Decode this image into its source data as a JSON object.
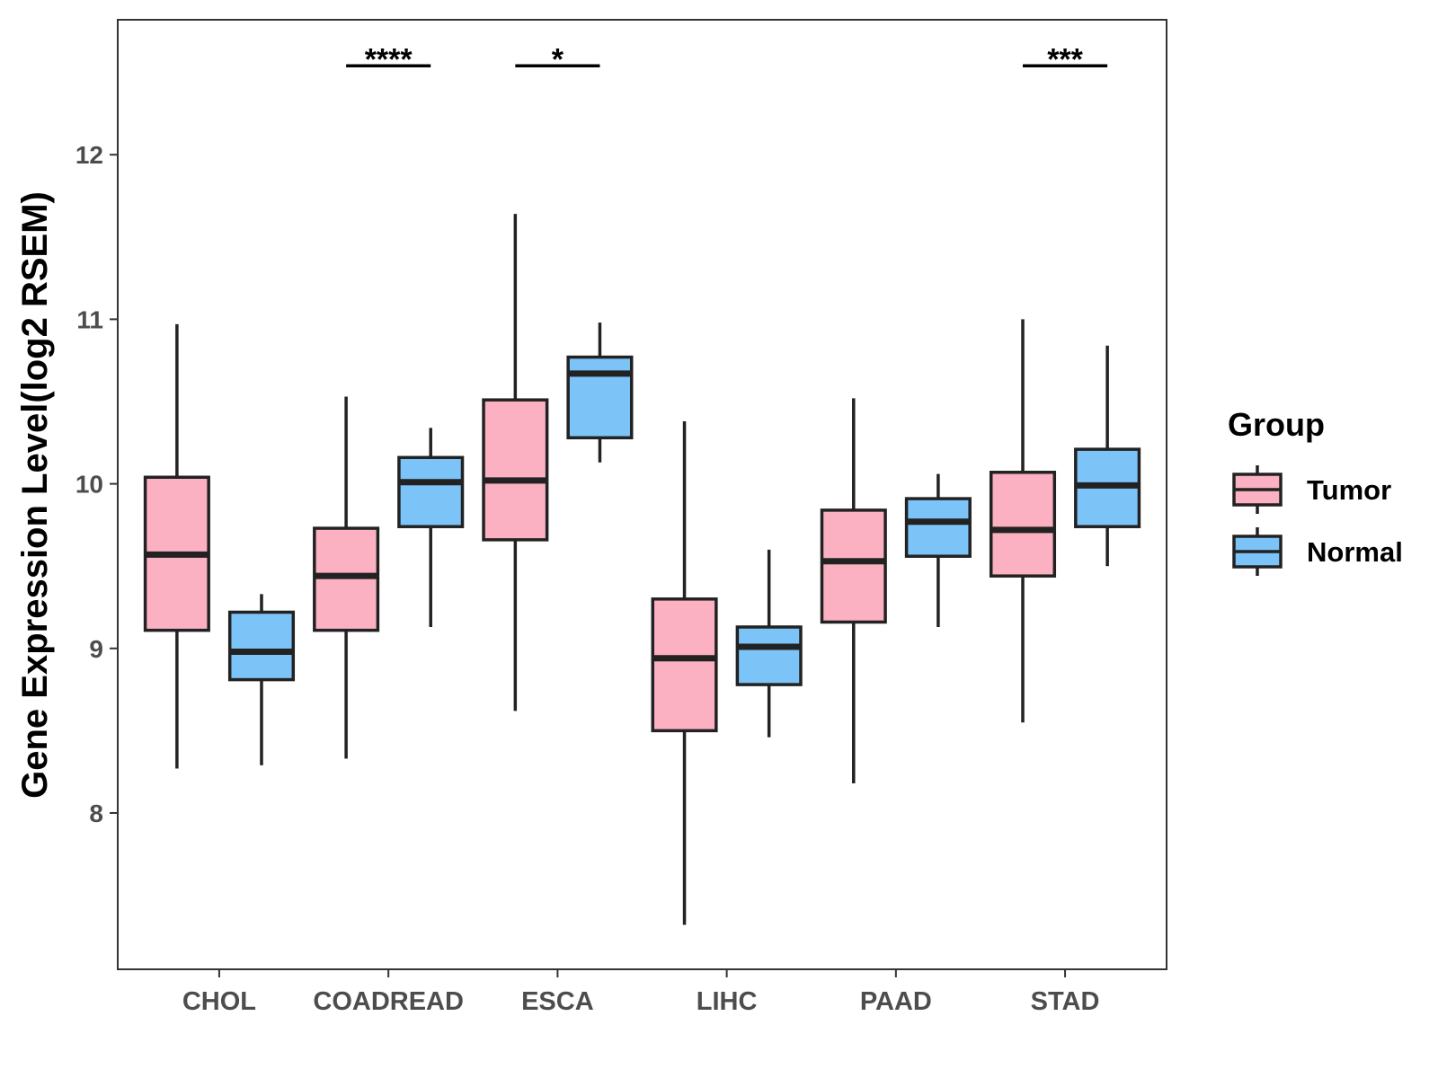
{
  "chart_data": {
    "type": "box",
    "title": "",
    "xlabel": "",
    "ylabel": "Gene Expression Level(log2 RSEM)",
    "ylim": [
      7.05,
      12.82
    ],
    "yticks": [
      8,
      9,
      10,
      11,
      12
    ],
    "categories": [
      "CHOL",
      "COADREAD",
      "ESCA",
      "LIHC",
      "PAAD",
      "STAD"
    ],
    "legend": {
      "title": "Group",
      "position": "right",
      "entries": [
        "Tumor",
        "Normal"
      ]
    },
    "series": [
      {
        "name": "Tumor",
        "color": "#fbb1c2",
        "boxes": [
          {
            "category": "CHOL",
            "min": 8.27,
            "q1": 9.11,
            "median": 9.57,
            "q3": 10.04,
            "max": 10.97
          },
          {
            "category": "COADREAD",
            "min": 8.33,
            "q1": 9.11,
            "median": 9.44,
            "q3": 9.73,
            "max": 10.53
          },
          {
            "category": "ESCA",
            "min": 8.62,
            "q1": 9.66,
            "median": 10.02,
            "q3": 10.51,
            "max": 11.64
          },
          {
            "category": "LIHC",
            "min": 7.32,
            "q1": 8.5,
            "median": 8.94,
            "q3": 9.3,
            "max": 10.38
          },
          {
            "category": "PAAD",
            "min": 8.18,
            "q1": 9.16,
            "median": 9.53,
            "q3": 9.84,
            "max": 10.52
          },
          {
            "category": "STAD",
            "min": 8.55,
            "q1": 9.44,
            "median": 9.72,
            "q3": 10.07,
            "max": 11.0
          }
        ]
      },
      {
        "name": "Normal",
        "color": "#7cc3f8",
        "boxes": [
          {
            "category": "CHOL",
            "min": 8.29,
            "q1": 8.81,
            "median": 8.98,
            "q3": 9.22,
            "max": 9.33
          },
          {
            "category": "COADREAD",
            "min": 9.13,
            "q1": 9.74,
            "median": 10.01,
            "q3": 10.16,
            "max": 10.34
          },
          {
            "category": "ESCA",
            "min": 10.13,
            "q1": 10.28,
            "median": 10.67,
            "q3": 10.77,
            "max": 10.98
          },
          {
            "category": "LIHC",
            "min": 8.46,
            "q1": 8.78,
            "median": 9.01,
            "q3": 9.13,
            "max": 9.6
          },
          {
            "category": "PAAD",
            "min": 9.13,
            "q1": 9.56,
            "median": 9.77,
            "q3": 9.91,
            "max": 10.06
          },
          {
            "category": "STAD",
            "min": 9.5,
            "q1": 9.74,
            "median": 9.99,
            "q3": 10.21,
            "max": 10.84
          }
        ]
      }
    ],
    "annotations": [
      {
        "category": "COADREAD",
        "label": "****"
      },
      {
        "category": "ESCA",
        "label": "*"
      },
      {
        "category": "STAD",
        "label": "***"
      }
    ],
    "annotation_y": 12.54
  }
}
